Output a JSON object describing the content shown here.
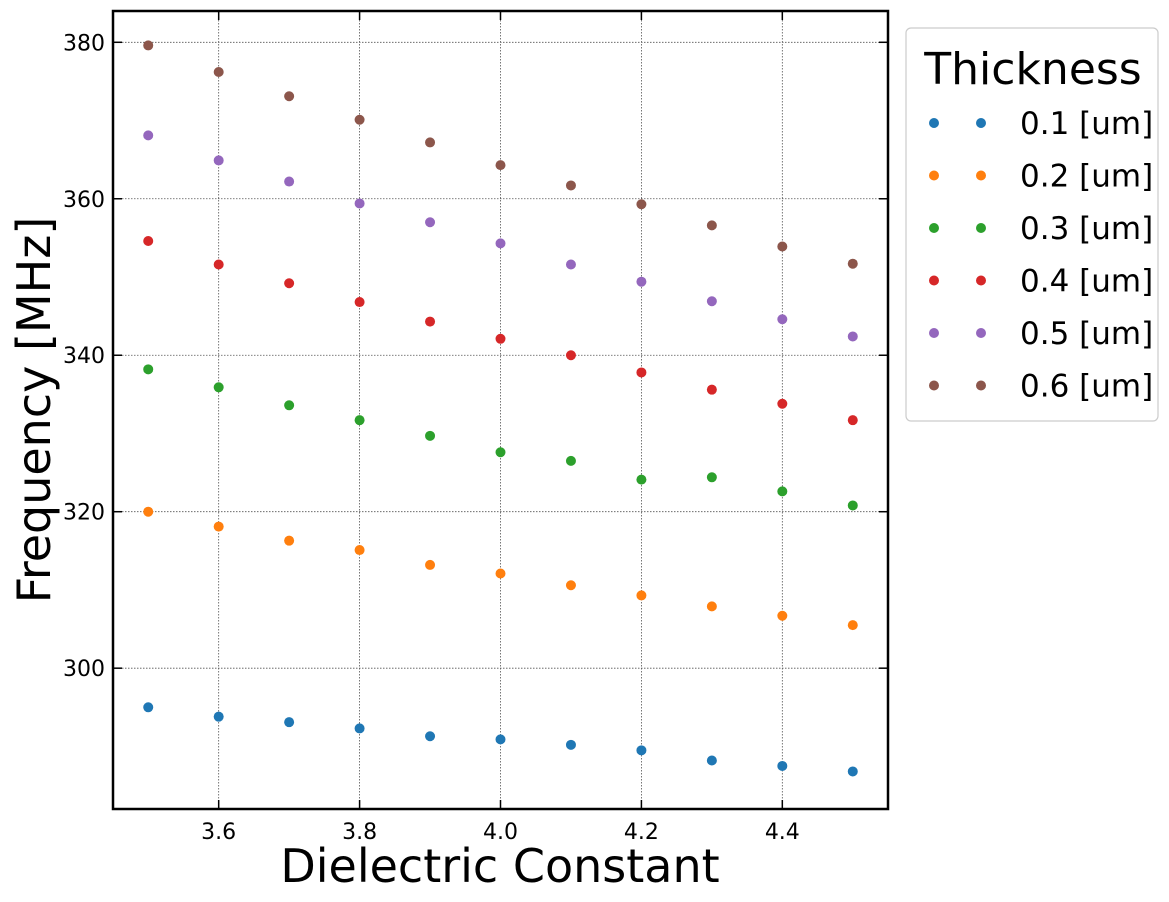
{
  "chart_data": {
    "type": "scatter",
    "title": "",
    "xlabel": "Dielectric Constant",
    "ylabel": "Frequency [MHz]",
    "xlim": [
      3.45,
      4.55
    ],
    "ylim": [
      282,
      384
    ],
    "xticks": [
      3.6,
      3.8,
      4.0,
      4.2,
      4.4
    ],
    "xtick_labels": [
      "3.6",
      "3.8",
      "4.0",
      "4.2",
      "4.4"
    ],
    "yticks": [
      300,
      320,
      340,
      360,
      380
    ],
    "ytick_labels": [
      "300",
      "320",
      "340",
      "360",
      "380"
    ],
    "grid": true,
    "legend": {
      "title": "Thickness",
      "placement": "outside upper right"
    },
    "x": [
      3.5,
      3.6,
      3.7,
      3.8,
      3.9,
      4.0,
      4.1,
      4.2,
      4.3,
      4.4,
      4.5
    ],
    "series": [
      {
        "name": "0.1 [um]",
        "color": "#1f77b4",
        "values": [
          295.0,
          293.8,
          293.1,
          292.3,
          291.3,
          290.9,
          290.2,
          289.5,
          288.2,
          287.5,
          286.8
        ]
      },
      {
        "name": "0.2 [um]",
        "color": "#ff7f0e",
        "values": [
          320.0,
          318.1,
          316.3,
          315.1,
          313.2,
          312.1,
          310.6,
          309.3,
          307.9,
          306.7,
          305.5
        ]
      },
      {
        "name": "0.3 [um]",
        "color": "#2ca02c",
        "values": [
          338.2,
          335.9,
          333.6,
          331.7,
          329.7,
          327.6,
          326.5,
          324.1,
          324.4,
          322.6,
          320.8
        ]
      },
      {
        "name": "0.4 [um]",
        "color": "#d62728",
        "values": [
          354.6,
          351.6,
          349.2,
          346.8,
          344.3,
          342.1,
          340.0,
          337.8,
          335.6,
          333.8,
          331.7
        ]
      },
      {
        "name": "0.5 [um]",
        "color": "#9467bd",
        "values": [
          368.1,
          364.9,
          362.2,
          359.4,
          357.0,
          354.3,
          351.6,
          349.4,
          346.9,
          344.6,
          342.4
        ]
      },
      {
        "name": "0.6 [um]",
        "color": "#8c564b",
        "values": [
          379.6,
          376.2,
          373.1,
          370.1,
          367.2,
          364.3,
          361.7,
          359.3,
          356.6,
          353.9,
          351.7
        ]
      }
    ]
  }
}
